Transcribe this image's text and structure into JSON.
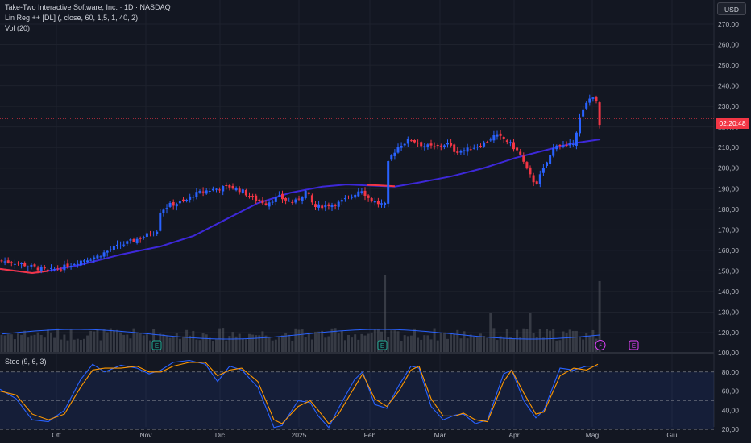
{
  "header": {
    "title": "Take-Two Interactive Software, Inc. · 1D · NASDAQ",
    "indicator_1": "Lin Reg ++ [DL] (, close, 60, 1,5, 1, 40, 2)",
    "indicator_2": "Vol (20)",
    "currency_button": "USD"
  },
  "price_tag": {
    "time_label": "02:20:48"
  },
  "stoch_panel": {
    "label": "Stoc (9, 6, 3)"
  },
  "markers": {
    "earnings": "E",
    "dividend": "⚡"
  },
  "colors": {
    "background": "#131722",
    "up": "#2962ff",
    "down": "#f23645",
    "regression": "#3d28d9",
    "stoch_k": "#2962ff",
    "stoch_d": "#ff9800",
    "volume": "#565a63"
  },
  "chart_data": [
    {
      "type": "candlestick",
      "title": "Take-Two Interactive Software, Inc. · 1D · NASDAQ",
      "ylim": [
        115,
        275
      ],
      "y_ticks": [
        "270,00",
        "260,00",
        "250,00",
        "240,00",
        "230,00",
        "220,00",
        "210,00",
        "200,00",
        "190,00",
        "180,00",
        "170,00",
        "160,00",
        "150,00",
        "140,00",
        "130,00",
        "120,00"
      ],
      "x_tick_labels": [
        "Ott",
        "Nov",
        "Dic",
        "2025",
        "Feb",
        "Mar",
        "Apr",
        "Mag",
        "Giu"
      ],
      "price_path": [
        [
          0,
          155
        ],
        [
          20,
          154
        ],
        [
          40,
          152
        ],
        [
          60,
          150
        ],
        [
          80,
          152
        ],
        [
          100,
          155
        ],
        [
          120,
          157
        ],
        [
          140,
          161
        ],
        [
          160,
          164
        ],
        [
          180,
          167
        ],
        [
          195,
          170
        ],
        [
          198,
          179
        ],
        [
          210,
          182
        ],
        [
          230,
          184
        ],
        [
          240,
          187
        ],
        [
          255,
          189
        ],
        [
          270,
          190
        ],
        [
          285,
          191
        ],
        [
          300,
          189
        ],
        [
          315,
          185
        ],
        [
          330,
          183
        ],
        [
          345,
          186
        ],
        [
          365,
          183
        ],
        [
          380,
          189
        ],
        [
          390,
          181
        ],
        [
          405,
          182
        ],
        [
          420,
          183
        ],
        [
          435,
          186
        ],
        [
          448,
          190
        ],
        [
          458,
          185
        ],
        [
          468,
          183
        ],
        [
          478,
          182
        ],
        [
          482,
          204
        ],
        [
          495,
          211
        ],
        [
          510,
          214
        ],
        [
          525,
          211
        ],
        [
          540,
          210
        ],
        [
          555,
          212
        ],
        [
          565,
          208
        ],
        [
          580,
          209
        ],
        [
          600,
          212
        ],
        [
          615,
          216
        ],
        [
          630,
          213
        ],
        [
          645,
          207
        ],
        [
          655,
          198
        ],
        [
          665,
          192
        ],
        [
          675,
          200
        ],
        [
          690,
          212
        ],
        [
          705,
          210
        ],
        [
          712,
          213
        ],
        [
          720,
          225
        ],
        [
          730,
          233
        ],
        [
          738,
          236
        ],
        [
          745,
          221
        ]
      ],
      "last_close": 221,
      "regression_line": [
        [
          0,
          151
        ],
        [
          40,
          149
        ],
        [
          60,
          150
        ],
        [
          100,
          153
        ],
        [
          150,
          158
        ],
        [
          200,
          162
        ],
        [
          240,
          167
        ],
        [
          280,
          175
        ],
        [
          320,
          183
        ],
        [
          360,
          188
        ],
        [
          400,
          191
        ],
        [
          430,
          192
        ],
        [
          460,
          191.5
        ],
        [
          490,
          191
        ],
        [
          520,
          193
        ],
        [
          560,
          196
        ],
        [
          600,
          200
        ],
        [
          640,
          205
        ],
        [
          680,
          209
        ],
        [
          710,
          212
        ],
        [
          745,
          214
        ]
      ],
      "regression_label": "Lin Reg ++ [DL] (, close, 60, 1,5, 1, 40, 2)",
      "volume_label": "Vol (20)",
      "volume_peaks": [
        [
          478,
          "high"
        ],
        [
          608,
          "medium"
        ],
        [
          658,
          "medium"
        ],
        [
          745,
          "high"
        ]
      ],
      "earnings_markers_x": [
        194,
        474,
        786
      ],
      "dividend_marker_x": 745
    },
    {
      "type": "line",
      "title": "Stoc (9, 6, 3)",
      "ylim": [
        15,
        100
      ],
      "y_ticks": [
        "100,00",
        "80,00",
        "60,00",
        "40,00",
        "20,00"
      ],
      "bands": [
        20,
        50,
        80
      ],
      "series": [
        {
          "key": "K",
          "points": [
            [
              0,
              62
            ],
            [
              20,
              52
            ],
            [
              40,
              30
            ],
            [
              60,
              28
            ],
            [
              80,
              40
            ],
            [
              100,
              72
            ],
            [
              115,
              88
            ],
            [
              130,
              80
            ],
            [
              150,
              87
            ],
            [
              170,
              84
            ],
            [
              185,
              78
            ],
            [
              200,
              82
            ],
            [
              215,
              90
            ],
            [
              235,
              92
            ],
            [
              255,
              88
            ],
            [
              270,
              70
            ],
            [
              285,
              86
            ],
            [
              300,
              82
            ],
            [
              320,
              64
            ],
            [
              340,
              22
            ],
            [
              350,
              24
            ],
            [
              370,
              50
            ],
            [
              385,
              48
            ],
            [
              395,
              34
            ],
            [
              408,
              22
            ],
            [
              420,
              42
            ],
            [
              440,
              72
            ],
            [
              450,
              80
            ],
            [
              465,
              46
            ],
            [
              480,
              42
            ],
            [
              495,
              66
            ],
            [
              510,
              86
            ],
            [
              520,
              84
            ],
            [
              535,
              44
            ],
            [
              550,
              30
            ],
            [
              565,
              35
            ],
            [
              575,
              36
            ],
            [
              590,
              26
            ],
            [
              605,
              30
            ],
            [
              625,
              78
            ],
            [
              635,
              82
            ],
            [
              650,
              50
            ],
            [
              665,
              32
            ],
            [
              675,
              40
            ],
            [
              695,
              84
            ],
            [
              712,
              82
            ],
            [
              728,
              86
            ],
            [
              742,
              86
            ]
          ]
        },
        {
          "key": "D",
          "points": [
            [
              0,
              60
            ],
            [
              20,
              56
            ],
            [
              40,
              36
            ],
            [
              60,
              30
            ],
            [
              80,
              36
            ],
            [
              100,
              64
            ],
            [
              115,
              82
            ],
            [
              130,
              84
            ],
            [
              150,
              84
            ],
            [
              170,
              86
            ],
            [
              185,
              80
            ],
            [
              200,
              80
            ],
            [
              215,
              86
            ],
            [
              235,
              90
            ],
            [
              255,
              90
            ],
            [
              270,
              76
            ],
            [
              285,
              82
            ],
            [
              300,
              84
            ],
            [
              320,
              70
            ],
            [
              340,
              30
            ],
            [
              350,
              26
            ],
            [
              370,
              44
            ],
            [
              385,
              50
            ],
            [
              395,
              40
            ],
            [
              408,
              26
            ],
            [
              420,
              36
            ],
            [
              440,
              64
            ],
            [
              450,
              78
            ],
            [
              465,
              52
            ],
            [
              480,
              44
            ],
            [
              495,
              60
            ],
            [
              510,
              82
            ],
            [
              520,
              86
            ],
            [
              535,
              52
            ],
            [
              550,
              34
            ],
            [
              565,
              34
            ],
            [
              575,
              37
            ],
            [
              590,
              30
            ],
            [
              605,
              28
            ],
            [
              625,
              70
            ],
            [
              635,
              82
            ],
            [
              650,
              58
            ],
            [
              665,
              36
            ],
            [
              675,
              38
            ],
            [
              695,
              76
            ],
            [
              712,
              84
            ],
            [
              728,
              82
            ],
            [
              742,
              88
            ]
          ]
        }
      ]
    }
  ]
}
